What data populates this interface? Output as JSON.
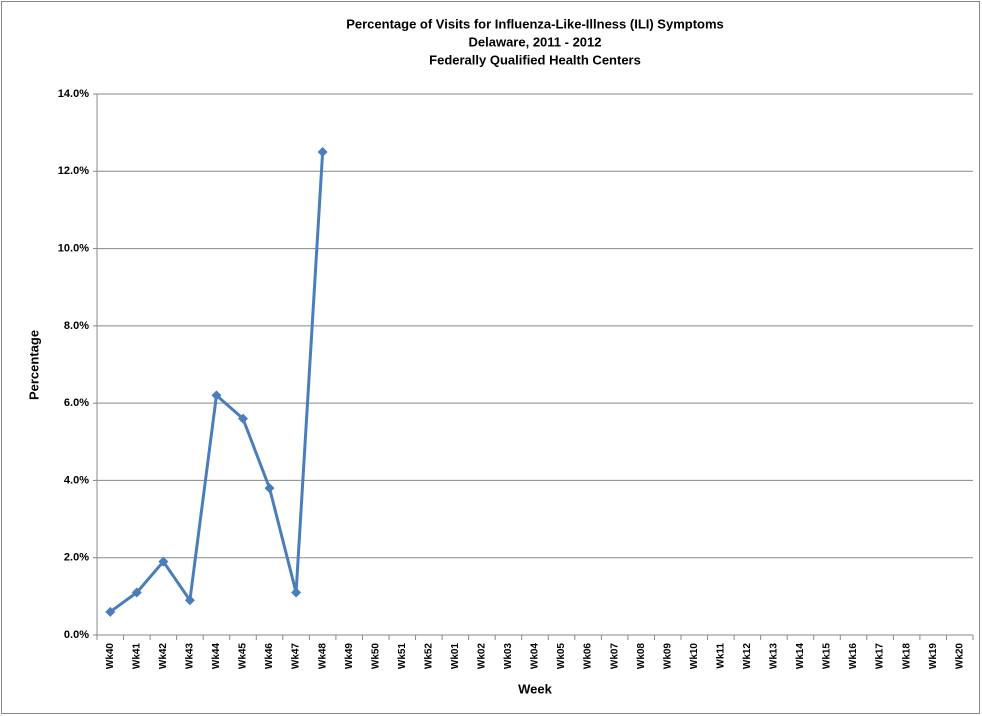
{
  "chart_data": {
    "type": "line",
    "title": "Percentage of Visits for Influenza-Like-Illness (ILI) Symptoms",
    "subtitle": [
      "Delaware, 2011 - 2012",
      "Federally Qualified Health Centers"
    ],
    "x_label": "Week",
    "y_label": "Percentage",
    "categories": [
      "Wk40",
      "Wk41",
      "Wk42",
      "Wk43",
      "Wk44",
      "Wk45",
      "Wk46",
      "Wk47",
      "Wk48",
      "Wk49",
      "Wk50",
      "Wk51",
      "Wk52",
      "Wk01",
      "Wk02",
      "Wk03",
      "Wk04",
      "Wk05",
      "Wk06",
      "Wk07",
      "Wk08",
      "Wk09",
      "Wk10",
      "Wk11",
      "Wk12",
      "Wk13",
      "Wk14",
      "Wk15",
      "Wk16",
      "Wk17",
      "Wk18",
      "Wk19",
      "Wk20"
    ],
    "series": [
      {
        "name": "ILI",
        "color": "#4a7ebb",
        "values": [
          0.6,
          1.1,
          1.9,
          0.9,
          6.2,
          5.6,
          3.8,
          1.1,
          12.5,
          null,
          null,
          null,
          null,
          null,
          null,
          null,
          null,
          null,
          null,
          null,
          null,
          null,
          null,
          null,
          null,
          null,
          null,
          null,
          null,
          null,
          null,
          null,
          null
        ]
      }
    ],
    "ylim": [
      0,
      14
    ],
    "yticks": [
      {
        "value": 0,
        "label": "0.0%"
      },
      {
        "value": 2,
        "label": "2.0%"
      },
      {
        "value": 4,
        "label": "4.0%"
      },
      {
        "value": 6,
        "label": "6.0%"
      },
      {
        "value": 8,
        "label": "8.0%"
      },
      {
        "value": 10,
        "label": "10.0%"
      },
      {
        "value": 12,
        "label": "12.0%"
      },
      {
        "value": 14,
        "label": "14.0%"
      }
    ],
    "grid": true,
    "legend": false
  }
}
